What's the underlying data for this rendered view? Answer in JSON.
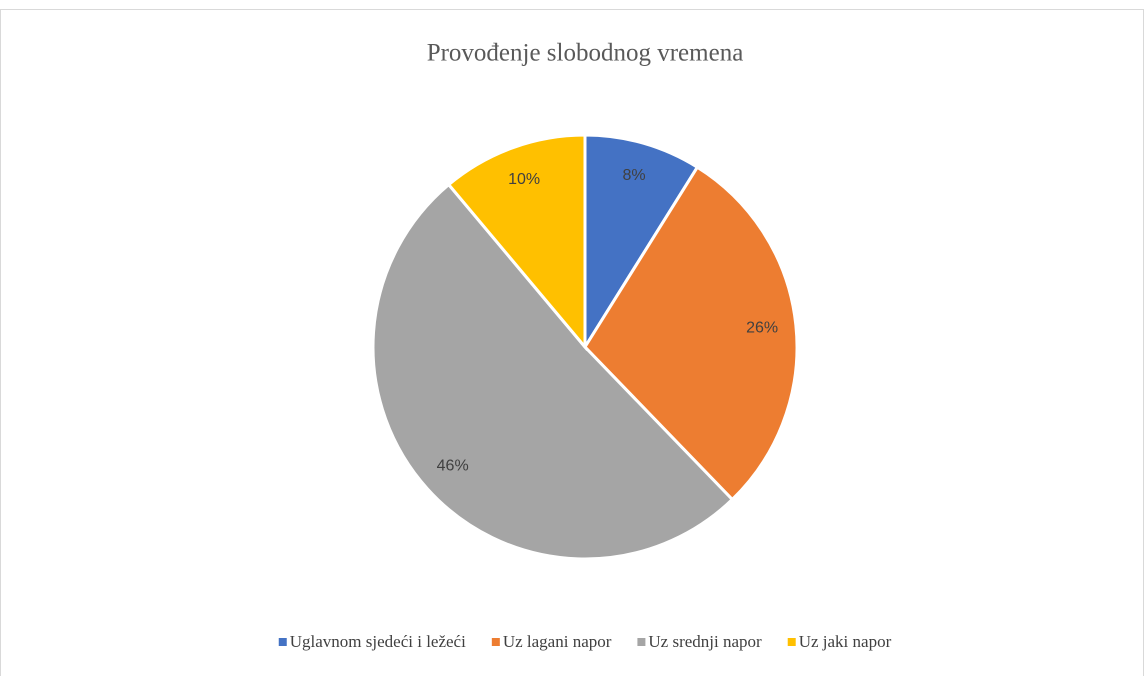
{
  "chart_data": {
    "type": "pie",
    "title": "Provođenje slobodnog vremena",
    "categories": [
      "Uglavnom sjedeći i ležeći",
      "Uz lagani napor",
      "Uz srednji napor",
      "Uz jaki napor"
    ],
    "values": [
      8,
      26,
      46,
      10
    ],
    "value_labels": [
      "8%",
      "26%",
      "46%",
      "10%"
    ],
    "colors": [
      "#4472c4",
      "#ed7d31",
      "#a5a5a5",
      "#ffc000"
    ],
    "legend": "bottom"
  }
}
